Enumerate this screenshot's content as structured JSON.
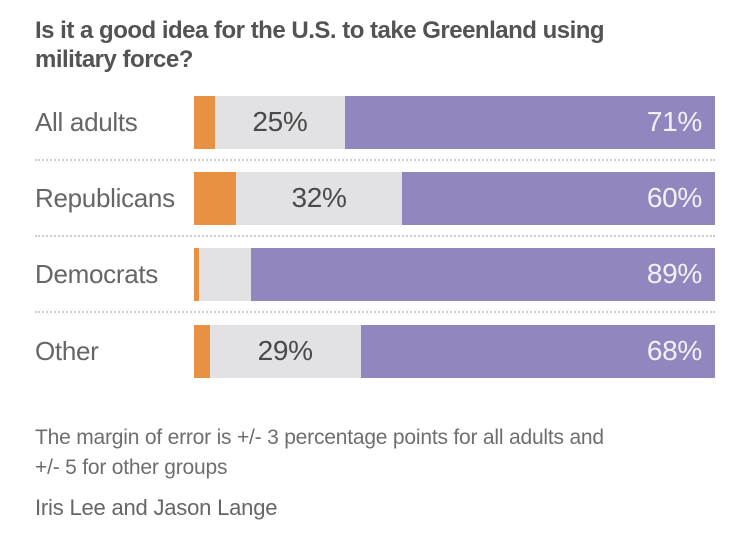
{
  "title_lines": {
    "line1": "Is it a good idea for the U.S. to take Greenland using",
    "line2": "military force?"
  },
  "footnote": {
    "line1": "The margin of error is +/- 3 percentage points for all adults and",
    "line2": "+/- 5 for other groups"
  },
  "byline": "Iris Lee and Jason Lange",
  "colors": {
    "orange": "#E89142",
    "gray": "#E2E1E3",
    "purple": "#9186BE",
    "title_text": "#535353",
    "label_text": "#666666",
    "pct_dark": "#4A4A4A",
    "pct_light": "#F4F1F6",
    "separator_dots": "#CCCCCC",
    "background": "#FFFFFF"
  },
  "chart_data": {
    "type": "bar",
    "orientation": "horizontal",
    "stacked": true,
    "title": "Is it a good idea for the U.S. to take Greenland using military force?",
    "categories": [
      "All adults",
      "Republicans",
      "Democrats",
      "Other"
    ],
    "series": [
      {
        "name": "orange-segment",
        "color": "#E89142",
        "values": [
          4,
          8,
          1,
          3
        ],
        "value_labels": [
          "",
          "",
          "",
          ""
        ],
        "label_style": "dark",
        "label_align": "center"
      },
      {
        "name": "gray-segment",
        "color": "#E2E1E3",
        "values": [
          25,
          32,
          10,
          29
        ],
        "value_labels": [
          "25%",
          "32%",
          "",
          "29%"
        ],
        "label_style": "dark",
        "label_align": "center"
      },
      {
        "name": "purple-segment",
        "color": "#9186BE",
        "values": [
          71,
          60,
          89,
          68
        ],
        "value_labels": [
          "71%",
          "60%",
          "89%",
          "68%"
        ],
        "label_style": "light",
        "label_align": "right"
      }
    ],
    "x_range": [
      0,
      100
    ],
    "grid": false,
    "legend": "none",
    "value_label_unit": "%"
  }
}
